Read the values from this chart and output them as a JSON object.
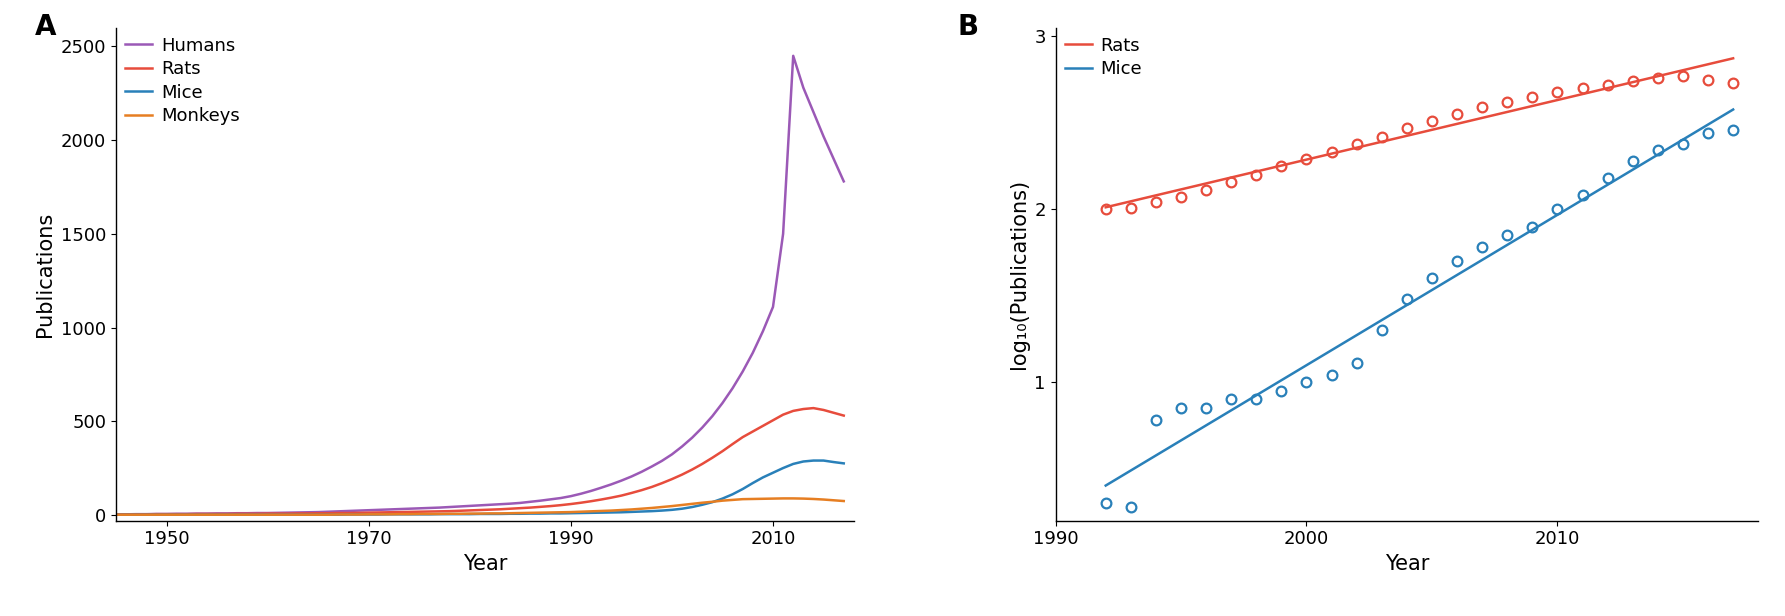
{
  "panel_A": {
    "title": "A",
    "xlabel": "Year",
    "ylabel": "Publications",
    "xlim": [
      1945,
      2018
    ],
    "ylim": [
      -30,
      2600
    ],
    "yticks": [
      0,
      500,
      1000,
      1500,
      2000,
      2500
    ],
    "xticks": [
      1950,
      1970,
      1990,
      2010
    ],
    "humans": {
      "color": "#9B59B6",
      "years": [
        1945,
        1946,
        1947,
        1948,
        1949,
        1950,
        1951,
        1952,
        1953,
        1954,
        1955,
        1956,
        1957,
        1958,
        1959,
        1960,
        1961,
        1962,
        1963,
        1964,
        1965,
        1966,
        1967,
        1968,
        1969,
        1970,
        1971,
        1972,
        1973,
        1974,
        1975,
        1976,
        1977,
        1978,
        1979,
        1980,
        1981,
        1982,
        1983,
        1984,
        1985,
        1986,
        1987,
        1988,
        1989,
        1990,
        1991,
        1992,
        1993,
        1994,
        1995,
        1996,
        1997,
        1998,
        1999,
        2000,
        2001,
        2002,
        2003,
        2004,
        2005,
        2006,
        2007,
        2008,
        2009,
        2010,
        2011,
        2012,
        2013,
        2014,
        2015,
        2016,
        2017
      ],
      "values": [
        3,
        3,
        4,
        4,
        5,
        5,
        6,
        6,
        7,
        7,
        8,
        8,
        9,
        9,
        10,
        10,
        11,
        12,
        13,
        14,
        15,
        17,
        19,
        21,
        23,
        25,
        27,
        29,
        31,
        33,
        35,
        37,
        39,
        42,
        45,
        48,
        51,
        54,
        57,
        60,
        64,
        70,
        76,
        83,
        90,
        100,
        113,
        128,
        145,
        163,
        183,
        205,
        230,
        258,
        288,
        323,
        365,
        412,
        466,
        527,
        597,
        676,
        765,
        865,
        980,
        1110,
        1500,
        2450,
        2280,
        2150,
        2020,
        1900,
        1780
      ]
    },
    "rats": {
      "color": "#E74C3C",
      "years": [
        1945,
        1946,
        1947,
        1948,
        1949,
        1950,
        1951,
        1952,
        1953,
        1954,
        1955,
        1956,
        1957,
        1958,
        1959,
        1960,
        1961,
        1962,
        1963,
        1964,
        1965,
        1966,
        1967,
        1968,
        1969,
        1970,
        1971,
        1972,
        1973,
        1974,
        1975,
        1976,
        1977,
        1978,
        1979,
        1980,
        1981,
        1982,
        1983,
        1984,
        1985,
        1986,
        1987,
        1988,
        1989,
        1990,
        1991,
        1992,
        1993,
        1994,
        1995,
        1996,
        1997,
        1998,
        1999,
        2000,
        2001,
        2002,
        2003,
        2004,
        2005,
        2006,
        2007,
        2008,
        2009,
        2010,
        2011,
        2012,
        2013,
        2014,
        2015,
        2016,
        2017
      ],
      "values": [
        3,
        3,
        3,
        3,
        4,
        4,
        4,
        4,
        5,
        5,
        5,
        5,
        6,
        6,
        6,
        7,
        7,
        7,
        8,
        8,
        9,
        9,
        10,
        10,
        11,
        12,
        13,
        14,
        15,
        16,
        17,
        18,
        19,
        20,
        22,
        24,
        26,
        28,
        30,
        33,
        36,
        39,
        43,
        47,
        52,
        58,
        65,
        73,
        82,
        92,
        103,
        117,
        132,
        149,
        169,
        191,
        215,
        242,
        272,
        305,
        340,
        378,
        415,
        445,
        475,
        505,
        535,
        555,
        565,
        570,
        560,
        545,
        530
      ]
    },
    "mice": {
      "color": "#2980B9",
      "years": [
        1945,
        1946,
        1947,
        1948,
        1949,
        1950,
        1951,
        1952,
        1953,
        1954,
        1955,
        1956,
        1957,
        1958,
        1959,
        1960,
        1961,
        1962,
        1963,
        1964,
        1965,
        1966,
        1967,
        1968,
        1969,
        1970,
        1971,
        1972,
        1973,
        1974,
        1975,
        1976,
        1977,
        1978,
        1979,
        1980,
        1981,
        1982,
        1983,
        1984,
        1985,
        1986,
        1987,
        1988,
        1989,
        1990,
        1991,
        1992,
        1993,
        1994,
        1995,
        1996,
        1997,
        1998,
        1999,
        2000,
        2001,
        2002,
        2003,
        2004,
        2005,
        2006,
        2007,
        2008,
        2009,
        2010,
        2011,
        2012,
        2013,
        2014,
        2015,
        2016,
        2017
      ],
      "values": [
        1,
        1,
        1,
        1,
        1,
        1,
        1,
        1,
        1,
        1,
        1,
        1,
        1,
        1,
        1,
        1,
        1,
        1,
        1,
        1,
        1,
        1,
        1,
        2,
        2,
        2,
        2,
        3,
        3,
        3,
        3,
        3,
        4,
        4,
        4,
        4,
        5,
        5,
        5,
        6,
        6,
        7,
        7,
        8,
        8,
        9,
        10,
        11,
        12,
        13,
        14,
        16,
        18,
        20,
        23,
        27,
        33,
        42,
        54,
        68,
        87,
        110,
        138,
        170,
        200,
        225,
        250,
        272,
        285,
        290,
        290,
        282,
        275
      ]
    },
    "monkeys": {
      "color": "#E67E22",
      "years": [
        1945,
        1946,
        1947,
        1948,
        1949,
        1950,
        1951,
        1952,
        1953,
        1954,
        1955,
        1956,
        1957,
        1958,
        1959,
        1960,
        1961,
        1962,
        1963,
        1964,
        1965,
        1966,
        1967,
        1968,
        1969,
        1970,
        1971,
        1972,
        1973,
        1974,
        1975,
        1976,
        1977,
        1978,
        1979,
        1980,
        1981,
        1982,
        1983,
        1984,
        1985,
        1986,
        1987,
        1988,
        1989,
        1990,
        1991,
        1992,
        1993,
        1994,
        1995,
        1996,
        1997,
        1998,
        1999,
        2000,
        2001,
        2002,
        2003,
        2004,
        2005,
        2006,
        2007,
        2008,
        2009,
        2010,
        2011,
        2012,
        2013,
        2014,
        2015,
        2016,
        2017
      ],
      "values": [
        1,
        1,
        1,
        1,
        1,
        1,
        1,
        1,
        1,
        1,
        1,
        1,
        1,
        1,
        1,
        1,
        1,
        1,
        1,
        1,
        1,
        1,
        2,
        2,
        2,
        3,
        3,
        3,
        4,
        4,
        5,
        5,
        5,
        6,
        6,
        7,
        7,
        8,
        8,
        9,
        10,
        11,
        12,
        13,
        14,
        15,
        17,
        19,
        21,
        23,
        26,
        29,
        33,
        37,
        42,
        47,
        53,
        59,
        65,
        70,
        76,
        80,
        84,
        85,
        86,
        87,
        88,
        88,
        87,
        85,
        82,
        78,
        74
      ]
    }
  },
  "panel_B": {
    "title": "B",
    "xlabel": "Year",
    "ylabel": "log₁₀(Publications)",
    "xlim": [
      1990,
      2018
    ],
    "ylim": [
      0.2,
      3.05
    ],
    "yticks": [
      1.0,
      2.0,
      3.0
    ],
    "xticks": [
      1990,
      2000,
      2010
    ],
    "rats": {
      "color": "#E74C3C",
      "years": [
        1992,
        1993,
        1994,
        1995,
        1996,
        1997,
        1998,
        1999,
        2000,
        2001,
        2002,
        2003,
        2004,
        2005,
        2006,
        2007,
        2008,
        2009,
        2010,
        2011,
        2012,
        2013,
        2014,
        2015,
        2016,
        2017
      ],
      "log_values": [
        2.0,
        2.01,
        2.04,
        2.07,
        2.11,
        2.16,
        2.2,
        2.25,
        2.29,
        2.33,
        2.38,
        2.42,
        2.47,
        2.51,
        2.55,
        2.59,
        2.62,
        2.65,
        2.68,
        2.7,
        2.72,
        2.74,
        2.76,
        2.77,
        2.75,
        2.73
      ]
    },
    "mice": {
      "color": "#2980B9",
      "years": [
        1992,
        1993,
        1994,
        1995,
        1996,
        1997,
        1998,
        1999,
        2000,
        2001,
        2002,
        2003,
        2004,
        2005,
        2006,
        2007,
        2008,
        2009,
        2010,
        2011,
        2012,
        2013,
        2014,
        2015,
        2016,
        2017
      ],
      "log_values": [
        0.3,
        0.28,
        0.78,
        0.85,
        0.85,
        0.9,
        0.9,
        0.95,
        1.0,
        1.04,
        1.11,
        1.3,
        1.48,
        1.6,
        1.7,
        1.78,
        1.85,
        1.9,
        2.0,
        2.08,
        2.18,
        2.28,
        2.34,
        2.38,
        2.44,
        2.46
      ]
    }
  },
  "background_color": "#ffffff",
  "label_fontsize": 15,
  "tick_fontsize": 13,
  "panel_label_fontsize": 20,
  "legend_fontsize": 13,
  "line_width": 1.8
}
